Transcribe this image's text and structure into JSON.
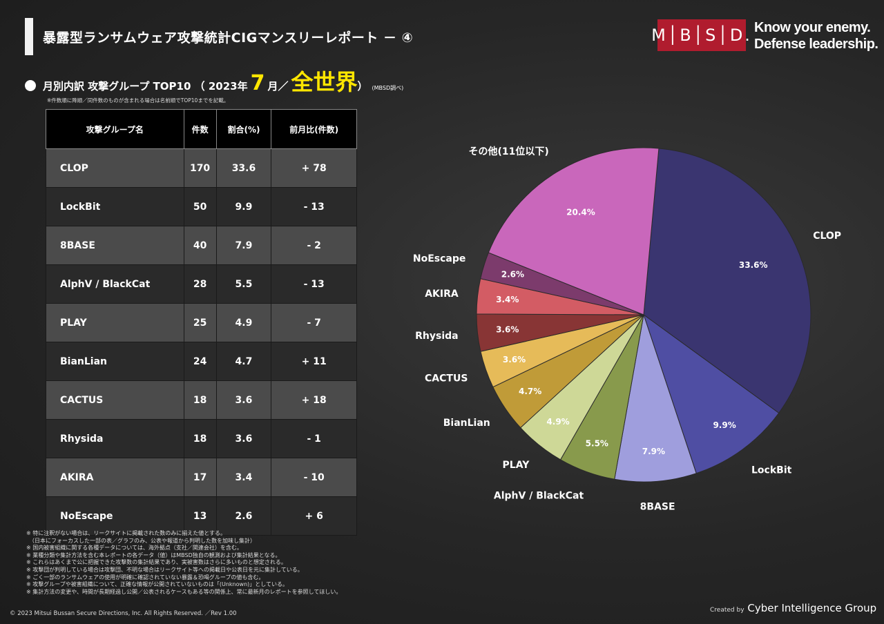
{
  "header": {
    "title": "暴露型ランサムウェア攻撃統計CIGマンスリーレポート － ④",
    "logo": "M│B│S│D.",
    "tagline_1": "Know your enemy.",
    "tagline_2": "Defense leadership.",
    "brand_color": "#b01c2e"
  },
  "subtitle": {
    "prefix": "月別内訳 攻撃グループ TOP10 （ 2023年",
    "month": "7",
    "month_suffix": "月／",
    "region": "全世界",
    "close": "）",
    "source": "(MBSD調べ)",
    "accent_color": "#ffe600"
  },
  "note_top": "※件数順に降順／同件数のものが含まれる場合は名前順でTOP10までを記載。",
  "table": {
    "headers": [
      "攻撃グループ名",
      "件数",
      "割合(%)",
      "前月比(件数)"
    ],
    "rows": [
      [
        "CLOP",
        "170",
        "33.6",
        "+ 78"
      ],
      [
        "LockBit",
        "50",
        "9.9",
        "- 13"
      ],
      [
        "8BASE",
        "40",
        "7.9",
        "- 2"
      ],
      [
        "AlphV / BlackCat",
        "28",
        "5.5",
        "- 13"
      ],
      [
        "PLAY",
        "25",
        "4.9",
        "- 7"
      ],
      [
        "BianLian",
        "24",
        "4.7",
        "+ 11"
      ],
      [
        "CACTUS",
        "18",
        "3.6",
        "+ 18"
      ],
      [
        "Rhysida",
        "18",
        "3.6",
        "- 1"
      ],
      [
        "AKIRA",
        "17",
        "3.4",
        "- 10"
      ],
      [
        "NoEscape",
        "13",
        "2.6",
        "+ 6"
      ]
    ]
  },
  "chart_data": {
    "type": "pie",
    "slices": [
      {
        "label": "CLOP",
        "value": 33.6,
        "text": "33.6%",
        "color": "#3a3570"
      },
      {
        "label": "LockBit",
        "value": 9.9,
        "text": "9.9%",
        "color": "#4f4ea3"
      },
      {
        "label": "8BASE",
        "value": 7.9,
        "text": "7.9%",
        "color": "#9f9edd"
      },
      {
        "label": "AlphV / BlackCat",
        "value": 5.5,
        "text": "5.5%",
        "color": "#889a4c"
      },
      {
        "label": "PLAY",
        "value": 4.9,
        "text": "4.9%",
        "color": "#ced897"
      },
      {
        "label": "BianLian",
        "value": 4.7,
        "text": "4.7%",
        "color": "#c09b38"
      },
      {
        "label": "CACTUS",
        "value": 3.6,
        "text": "3.6%",
        "color": "#e6bb59"
      },
      {
        "label": "Rhysida",
        "value": 3.6,
        "text": "3.6%",
        "color": "#883535"
      },
      {
        "label": "AKIRA",
        "value": 3.4,
        "text": "3.4%",
        "color": "#d35c64"
      },
      {
        "label": "NoEscape",
        "value": 2.6,
        "text": "2.6%",
        "color": "#7c3b6c"
      },
      {
        "label": "その他(11位以下)",
        "value": 20.4,
        "text": "20.4%",
        "color": "#c967bb"
      }
    ]
  },
  "footnotes": [
    "※ 特に注釈がない場合は、リークサイトに掲載された数のみに揃えた値とする。",
    "　（日本にフォーカスした一部の表／グラフのみ、公表や報道から判明した数を加味し集計）",
    "※ 国内被害組織に関する各種データについては、海外拠点（支社／関連会社）を含む。",
    "※ 業種分類や集計方法を含む本レポートの各データ（値）はMBSD独自の観測および集計結果となる。",
    "※ これらはあくまで公に把握できた攻撃数の集計結果であり、実被害数はさらに多いものと想定される。",
    "※ 攻撃団が判明している場合は攻撃団、不明な場合はリークサイト等への掲載日や公表日を元に集計している。",
    "※ ごく一部のランサムウェアの使用が明確に確認されていない暴露＆恐喝グループの値も含む。",
    "※ 攻撃グループや被害組織について、正確な情報が公開されていないものは「(Unknown)」としている。",
    "※ 集計方法の変更や、時間が長期経過し公開／公表されるケースもある等の関係上、常に最新月のレポートを参照してほしい。"
  ],
  "copyright": "© 2023 Mitsui Bussan Secure Directions, Inc.  All Rights Reserved. ／Rev 1.00",
  "created_by": "Created by",
  "created_group": "Cyber Intelligence Group"
}
